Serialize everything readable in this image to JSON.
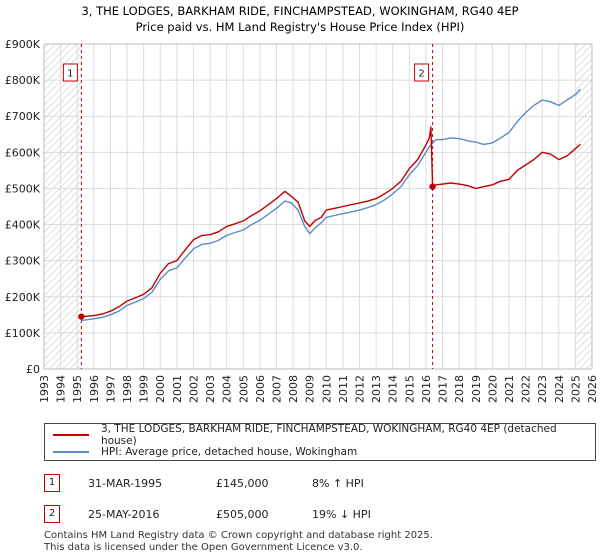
{
  "chart_data": {
    "type": "line",
    "title": "3, THE LODGES, BARKHAM RIDE, FINCHAMPSTEAD, WOKINGHAM, RG40 4EP",
    "subtitle": "Price paid vs. HM Land Registry's House Price Index (HPI)",
    "xlabel": "",
    "ylabel": "",
    "xlim": [
      1993,
      2026
    ],
    "ylim": [
      0,
      900000
    ],
    "x_ticks": [
      "1993",
      "1994",
      "1995",
      "1996",
      "1997",
      "1998",
      "1999",
      "2000",
      "2001",
      "2002",
      "2003",
      "2004",
      "2005",
      "2006",
      "2007",
      "2008",
      "2009",
      "2010",
      "2011",
      "2012",
      "2013",
      "2014",
      "2015",
      "2016",
      "2017",
      "2018",
      "2019",
      "2020",
      "2021",
      "2022",
      "2023",
      "2024",
      "2025",
      "2026"
    ],
    "y_ticks": [
      {
        "value": 0,
        "label": "£0"
      },
      {
        "value": 100000,
        "label": "£100K"
      },
      {
        "value": 200000,
        "label": "£200K"
      },
      {
        "value": 300000,
        "label": "£300K"
      },
      {
        "value": 400000,
        "label": "£400K"
      },
      {
        "value": 500000,
        "label": "£500K"
      },
      {
        "value": 600000,
        "label": "£600K"
      },
      {
        "value": 700000,
        "label": "£700K"
      },
      {
        "value": 800000,
        "label": "£800K"
      },
      {
        "value": 900000,
        "label": "£900K"
      }
    ],
    "grid": true,
    "hatched_regions": [
      [
        1993,
        1995.25
      ],
      [
        2025.0,
        2026
      ]
    ],
    "series": [
      {
        "name": "3, THE LODGES, BARKHAM RIDE, FINCHAMPSTEAD, WOKINGHAM, RG40 4EP (detached house)",
        "color": "#c00000",
        "x": [
          1995.25,
          1995.5,
          1996,
          1996.5,
          1997,
          1997.5,
          1998,
          1998.5,
          1999,
          1999.5,
          2000,
          2000.5,
          2001,
          2001.5,
          2002,
          2002.5,
          2003,
          2003.5,
          2004,
          2004.5,
          2005,
          2005.5,
          2006,
          2006.5,
          2007,
          2007.5,
          2007.9,
          2008.3,
          2008.7,
          2009,
          2009.3,
          2009.7,
          2010,
          2010.5,
          2011,
          2011.5,
          2012,
          2012.5,
          2013,
          2013.5,
          2014,
          2014.5,
          2015,
          2015.5,
          2016,
          2016.2,
          2016.3,
          2016.4,
          2016.6,
          2017,
          2017.5,
          2018,
          2018.5,
          2019,
          2019.5,
          2020,
          2020.5,
          2021,
          2021.5,
          2022,
          2022.5,
          2023,
          2023.5,
          2024,
          2024.5,
          2025,
          2025.3
        ],
        "y": [
          145000,
          146000,
          148000,
          152000,
          160000,
          172000,
          188000,
          197000,
          207000,
          225000,
          265000,
          292000,
          300000,
          330000,
          358000,
          370000,
          372000,
          380000,
          395000,
          402000,
          410000,
          425000,
          438000,
          455000,
          472000,
          492000,
          478000,
          462000,
          410000,
          395000,
          410000,
          420000,
          440000,
          445000,
          450000,
          455000,
          460000,
          465000,
          472000,
          485000,
          500000,
          520000,
          555000,
          580000,
          620000,
          640000,
          670000,
          505000,
          510000,
          512000,
          515000,
          512000,
          508000,
          500000,
          505000,
          510000,
          520000,
          525000,
          550000,
          565000,
          580000,
          600000,
          595000,
          580000,
          590000,
          610000,
          622000
        ]
      },
      {
        "name": "HPI: Average price, detached house, Wokingham",
        "color": "#5b8cc8",
        "x": [
          1995.25,
          1995.5,
          1996,
          1996.5,
          1997,
          1997.5,
          1998,
          1998.5,
          1999,
          1999.5,
          2000,
          2000.5,
          2001,
          2001.5,
          2002,
          2002.5,
          2003,
          2003.5,
          2004,
          2004.5,
          2005,
          2005.5,
          2006,
          2006.5,
          2007,
          2007.5,
          2007.9,
          2008.3,
          2008.7,
          2009,
          2009.3,
          2009.7,
          2010,
          2010.5,
          2011,
          2011.5,
          2012,
          2012.5,
          2013,
          2013.5,
          2014,
          2014.5,
          2015,
          2015.5,
          2016,
          2016.2,
          2016.4,
          2016.6,
          2017,
          2017.5,
          2018,
          2018.5,
          2019,
          2019.5,
          2020,
          2020.5,
          2021,
          2021.5,
          2022,
          2022.5,
          2023,
          2023.5,
          2024,
          2024.5,
          2025,
          2025.3
        ],
        "y": [
          134000,
          136000,
          139000,
          143000,
          150000,
          160000,
          176000,
          185000,
          195000,
          212000,
          248000,
          272000,
          280000,
          307000,
          333000,
          345000,
          348000,
          356000,
          370000,
          378000,
          385000,
          400000,
          412000,
          428000,
          445000,
          465000,
          460000,
          440000,
          395000,
          375000,
          390000,
          405000,
          420000,
          425000,
          430000,
          435000,
          440000,
          447000,
          455000,
          468000,
          485000,
          505000,
          538000,
          563000,
          600000,
          615000,
          625000,
          635000,
          635000,
          640000,
          638000,
          632000,
          628000,
          622000,
          626000,
          640000,
          655000,
          685000,
          710000,
          730000,
          745000,
          740000,
          730000,
          745000,
          760000,
          775000
        ]
      }
    ],
    "sales": [
      {
        "n": "1",
        "x": 1995.25,
        "price": 145000,
        "date": "31-MAR-1995",
        "price_label": "£145,000",
        "hpi": "8% ↑ HPI"
      },
      {
        "n": "2",
        "x": 2016.4,
        "price": 505000,
        "date": "25-MAY-2016",
        "price_label": "£505,000",
        "hpi": "19% ↓ HPI"
      }
    ]
  },
  "footer": {
    "line1": "Contains HM Land Registry data © Crown copyright and database right 2025.",
    "line2": "This data is licensed under the Open Government Licence v3.0."
  }
}
